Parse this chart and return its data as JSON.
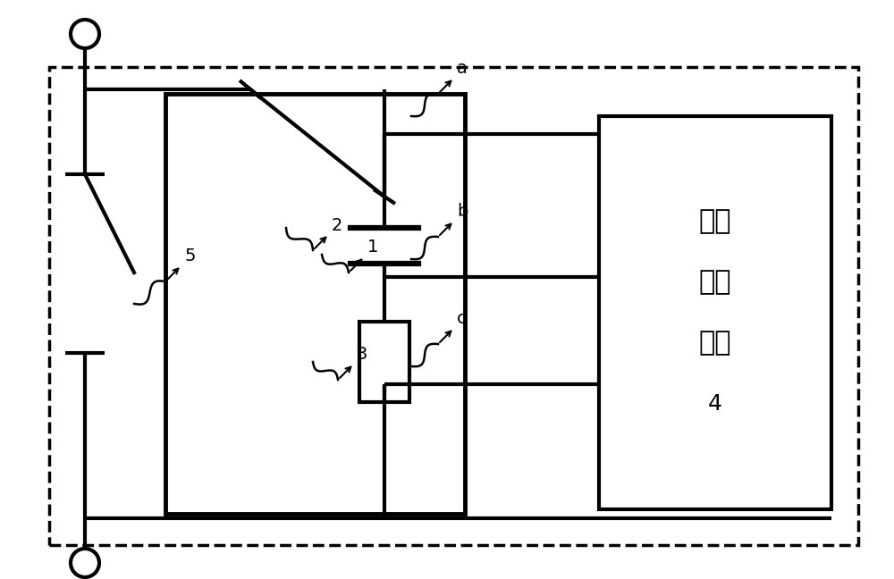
{
  "bg_color": "#ffffff",
  "line_color": "#000000",
  "lw": 3.0,
  "lw_thin": 1.8,
  "fig_width": 10.0,
  "fig_height": 6.48,
  "dpi": 100,
  "signal_text_lines": [
    "信号",
    "检测",
    "电路",
    "4"
  ]
}
